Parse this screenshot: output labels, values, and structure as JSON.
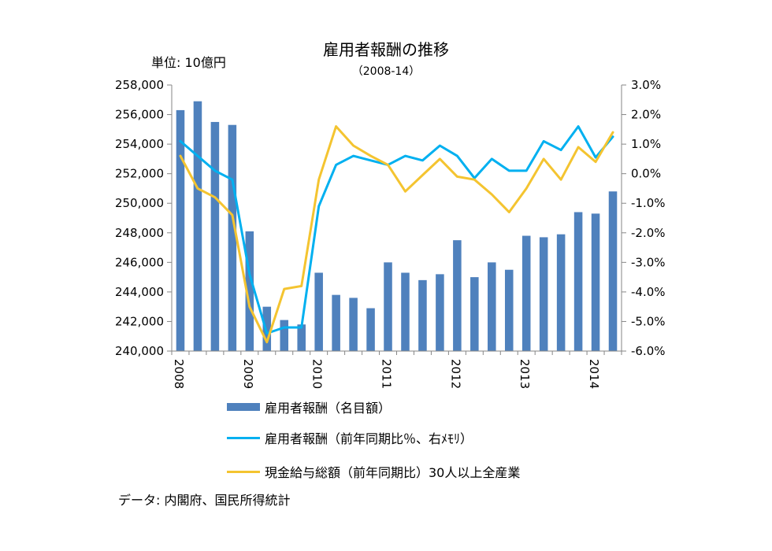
{
  "chart_data": {
    "type": "bar+line",
    "title": "雇用者報酬の推移",
    "subtitle": "（2008-14）",
    "unit_label": "単位: 10億円",
    "source": "データ: 内閣府、国民所得統計",
    "y_left": {
      "min": 240000,
      "max": 258000,
      "ticks": [
        "240,000",
        "242,000",
        "244,000",
        "246,000",
        "248,000",
        "250,000",
        "252,000",
        "254,000",
        "256,000",
        "258,000"
      ]
    },
    "y_right": {
      "min": -6.0,
      "max": 3.0,
      "ticks": [
        "-6.0%",
        "-5.0%",
        "-4.0%",
        "-3.0%",
        "-2.0%",
        "-1.0%",
        "0.0%",
        "1.0%",
        "2.0%",
        "3.0%"
      ]
    },
    "x_year_labels": [
      "2008",
      "2009",
      "2010",
      "2011",
      "2012",
      "2013",
      "2014"
    ],
    "x": [
      "2008Q1",
      "2008Q2",
      "2008Q3",
      "2008Q4",
      "2009Q1",
      "2009Q2",
      "2009Q3",
      "2009Q4",
      "2010Q1",
      "2010Q2",
      "2010Q3",
      "2010Q4",
      "2011Q1",
      "2011Q2",
      "2011Q3",
      "2011Q4",
      "2012Q1",
      "2012Q2",
      "2012Q3",
      "2012Q4",
      "2013Q1",
      "2013Q2",
      "2013Q3",
      "2013Q4",
      "2014Q1",
      "2014Q2"
    ],
    "series": [
      {
        "name": "雇用者報酬（名目額）",
        "kind": "bar",
        "axis": "left",
        "color": "#4f81bd",
        "values": [
          256300,
          256900,
          255500,
          255300,
          248100,
          243000,
          242100,
          241800,
          245300,
          243800,
          243600,
          242900,
          246000,
          245300,
          244800,
          245200,
          247500,
          245000,
          246000,
          245500,
          247800,
          247700,
          247900,
          249400,
          249300,
          250800
        ]
      },
      {
        "name": "雇用者報酬（前年同期比％、右ﾒﾓﾘ）",
        "kind": "line",
        "axis": "right",
        "color": "#00b0f0",
        "values": [
          1.1,
          0.6,
          0.1,
          -0.2,
          -3.4,
          -5.4,
          -5.2,
          -5.2,
          -1.1,
          0.3,
          0.6,
          0.45,
          0.3,
          0.6,
          0.45,
          0.95,
          0.6,
          -0.15,
          0.5,
          0.1,
          0.1,
          1.1,
          0.8,
          1.6,
          0.55,
          1.25
        ]
      },
      {
        "name": "現金給与総額（前年同期比）30人以上全産業",
        "kind": "line",
        "axis": "right",
        "color": "#f4c430",
        "values": [
          0.6,
          -0.5,
          -0.8,
          -1.4,
          -4.5,
          -5.7,
          -3.9,
          -3.8,
          -0.2,
          1.6,
          0.95,
          0.6,
          0.3,
          -0.6,
          -0.05,
          0.5,
          -0.1,
          -0.2,
          -0.7,
          -1.3,
          -0.5,
          0.5,
          -0.2,
          0.9,
          0.4,
          1.4
        ]
      }
    ]
  }
}
